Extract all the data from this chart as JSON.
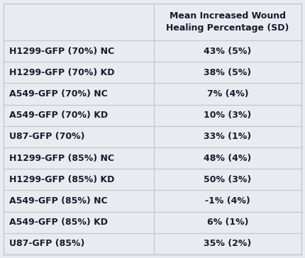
{
  "title": "Mean Increased Wound\nHealing Percentage (SD)",
  "rows": [
    [
      "H1299-GFP (70%) NC",
      "43% (5%)"
    ],
    [
      "H1299-GFP (70%) KD",
      "38% (5%)"
    ],
    [
      "A549-GFP (70%) NC",
      "7% (4%)"
    ],
    [
      "A549-GFP (70%) KD",
      "10% (3%)"
    ],
    [
      "U87-GFP (70%)",
      "33% (1%)"
    ],
    [
      "H1299-GFP (85%) NC",
      "48% (4%)"
    ],
    [
      "H1299-GFP (85%) KD",
      "50% (3%)"
    ],
    [
      "A549-GFP (85%) NC",
      "-1% (4%)"
    ],
    [
      "A549-GFP (85%) KD",
      "6% (1%)"
    ],
    [
      "U87-GFP (85%)",
      "35% (2%)"
    ]
  ],
  "bg_color": "#e8ecf0",
  "header_bg": "#e8ecf0",
  "row_bg": "#e8ecf0",
  "line_color": "#c0c8d4",
  "text_color": "#1a1a2e",
  "header_text_color": "#1a1a2e",
  "font_size": 9.0,
  "header_font_size": 9.0,
  "col_split": 0.505
}
